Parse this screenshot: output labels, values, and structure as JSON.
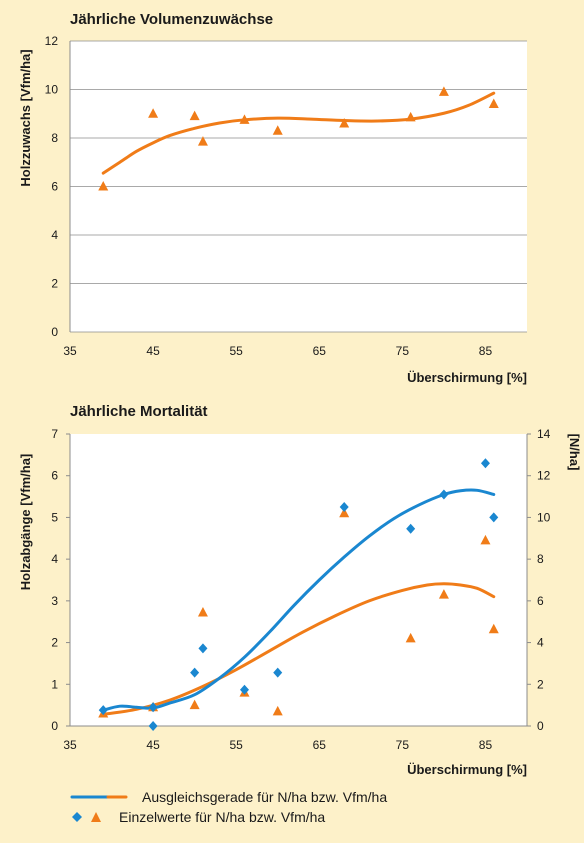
{
  "chart_data": [
    {
      "type": "scatter",
      "title": "Jährliche Volumenzuwächse",
      "xlabel": "Überschirmung [%]",
      "ylabel": "Holzzuwachs [Vfm/ha]",
      "xlim": [
        35,
        90
      ],
      "ylim": [
        0,
        12
      ],
      "xticks": [
        35,
        45,
        55,
        65,
        75,
        85
      ],
      "yticks": [
        0,
        2,
        4,
        6,
        8,
        10,
        12
      ],
      "grid": true,
      "series": [
        {
          "color": "#f07c18",
          "marker": "triangle",
          "points": [
            [
              39,
              6.0
            ],
            [
              45,
              9.0
            ],
            [
              50,
              8.9
            ],
            [
              51,
              7.85
            ],
            [
              56,
              8.75
            ],
            [
              60,
              8.3
            ],
            [
              68,
              8.6
            ],
            [
              76,
              8.85
            ],
            [
              80,
              9.9
            ],
            [
              86,
              9.4
            ]
          ]
        }
      ],
      "fit": [
        {
          "color": "#f07c18",
          "points": [
            [
              39,
              6.55
            ],
            [
              41,
              7.0
            ],
            [
              43,
              7.45
            ],
            [
              45,
              7.8
            ],
            [
              47,
              8.1
            ],
            [
              50,
              8.4
            ],
            [
              53,
              8.62
            ],
            [
              56,
              8.75
            ],
            [
              60,
              8.82
            ],
            [
              64,
              8.78
            ],
            [
              68,
              8.72
            ],
            [
              72,
              8.7
            ],
            [
              76,
              8.78
            ],
            [
              80,
              9.02
            ],
            [
              83,
              9.35
            ],
            [
              86,
              9.85
            ]
          ]
        }
      ]
    },
    {
      "type": "scatter",
      "title": "Jährliche Mortalität",
      "xlabel": "Überschirmung [%]",
      "ylabel": "Holzabgänge [Vfm/ha]",
      "y2label": "[N/ha]",
      "xlim": [
        35,
        90
      ],
      "ylim": [
        0,
        7
      ],
      "y2lim": [
        0,
        14
      ],
      "xticks": [
        35,
        45,
        55,
        65,
        75,
        85
      ],
      "yticks": [
        0,
        1,
        2,
        3,
        4,
        5,
        6,
        7
      ],
      "y2ticks": [
        0,
        2,
        4,
        6,
        8,
        10,
        12,
        14
      ],
      "grid": false,
      "series": [
        {
          "color": "#f07c18",
          "marker": "triangle",
          "axis": "left",
          "points": [
            [
              39,
              0.3
            ],
            [
              45,
              0.45
            ],
            [
              50,
              0.5
            ],
            [
              51,
              2.72
            ],
            [
              56,
              0.8
            ],
            [
              60,
              0.35
            ],
            [
              68,
              5.1
            ],
            [
              76,
              2.1
            ],
            [
              80,
              3.15
            ],
            [
              85,
              4.45
            ],
            [
              86,
              2.32
            ]
          ]
        },
        {
          "color": "#1a87d0",
          "marker": "diamond",
          "axis": "right",
          "points": [
            [
              39,
              0.76
            ],
            [
              45,
              0.9
            ],
            [
              45,
              0.0
            ],
            [
              50,
              2.56
            ],
            [
              51,
              3.72
            ],
            [
              56,
              1.74
            ],
            [
              60,
              2.56
            ],
            [
              68,
              10.5
            ],
            [
              76,
              9.46
            ],
            [
              80,
              11.1
            ],
            [
              85,
              12.6
            ],
            [
              86,
              10.0
            ]
          ]
        }
      ],
      "fit": [
        {
          "color": "#f07c18",
          "axis": "left",
          "points": [
            [
              39,
              0.28
            ],
            [
              43,
              0.4
            ],
            [
              47,
              0.62
            ],
            [
              51,
              0.95
            ],
            [
              55,
              1.35
            ],
            [
              59,
              1.8
            ],
            [
              63,
              2.25
            ],
            [
              67,
              2.65
            ],
            [
              71,
              3.0
            ],
            [
              75,
              3.25
            ],
            [
              78,
              3.38
            ],
            [
              80,
              3.41
            ],
            [
              82,
              3.38
            ],
            [
              84,
              3.3
            ],
            [
              86,
              3.1
            ]
          ]
        },
        {
          "color": "#1a87d0",
          "axis": "right",
          "points": [
            [
              39,
              0.76
            ],
            [
              41,
              0.95
            ],
            [
              43,
              0.9
            ],
            [
              45,
              0.86
            ],
            [
              47,
              1.1
            ],
            [
              50,
              1.5
            ],
            [
              53,
              2.3
            ],
            [
              56,
              3.3
            ],
            [
              59,
              4.5
            ],
            [
              62,
              5.8
            ],
            [
              65,
              7.0
            ],
            [
              68,
              8.1
            ],
            [
              71,
              9.1
            ],
            [
              74,
              9.95
            ],
            [
              77,
              10.6
            ],
            [
              80,
              11.1
            ],
            [
              82,
              11.28
            ],
            [
              84,
              11.3
            ],
            [
              86,
              11.1
            ]
          ]
        }
      ]
    }
  ],
  "legend": {
    "fit_label": "Ausgleichsgerade für N/ha bzw. Vfm/ha",
    "points_label": "Einzelwerte für N/ha bzw. Vfm/ha",
    "line_colors": [
      "#1a87d0",
      "#f07c18"
    ],
    "marker_colors": [
      "#1a87d0",
      "#f07c18"
    ]
  }
}
